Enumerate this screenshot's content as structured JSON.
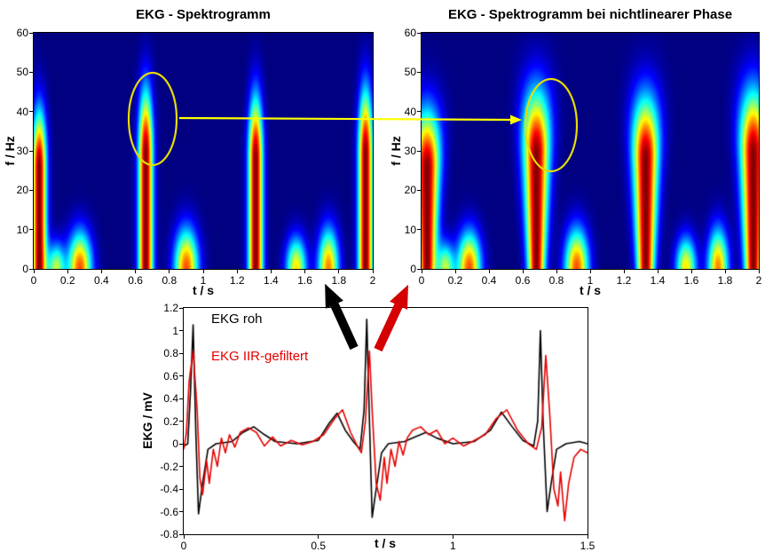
{
  "annotations": {
    "highlight_ellipse_color": "#e8dc00",
    "link_arrow_color": "#ffff00",
    "raw_signal_arrow_color": "#000000",
    "filtered_signal_arrow_color": "#d40000"
  },
  "chart_data": [
    {
      "id": "spectrogram_raw",
      "type": "heatmap",
      "title": "EKG - Spektrogramm",
      "xlabel": "t / s",
      "ylabel": "f / Hz",
      "xlim": [
        0,
        2
      ],
      "ylim": [
        0,
        60
      ],
      "xticks": [
        0,
        0.2,
        0.4,
        0.6,
        0.8,
        1,
        1.2,
        1.4,
        1.6,
        1.8,
        2
      ],
      "yticks": [
        0,
        10,
        20,
        30,
        40,
        50,
        60
      ],
      "colormap": "jet",
      "background_color": "#000080",
      "top_broadening": 0,
      "beats": [
        {
          "t": 0.03,
          "fmax": 46,
          "w": 0.042,
          "a": 1
        },
        {
          "t": 0.66,
          "fmax": 52,
          "w": 0.042,
          "a": 1
        },
        {
          "t": 1.31,
          "fmax": 50,
          "w": 0.042,
          "a": 1
        },
        {
          "t": 1.96,
          "fmax": 52,
          "w": 0.042,
          "a": 1
        }
      ],
      "low_freq_blobs": [
        {
          "t": 0.13,
          "fmax": 9,
          "w": 0.05,
          "a": 0.55
        },
        {
          "t": 0.27,
          "fmax": 13,
          "w": 0.07,
          "a": 0.8
        },
        {
          "t": 0.9,
          "fmax": 14,
          "w": 0.07,
          "a": 0.8
        },
        {
          "t": 1.55,
          "fmax": 11,
          "w": 0.06,
          "a": 0.65
        },
        {
          "t": 1.74,
          "fmax": 14,
          "w": 0.06,
          "a": 0.75
        }
      ],
      "highlight_ellipse": {
        "t": 0.7,
        "f": 38,
        "rt": 0.14,
        "rf": 12
      }
    },
    {
      "id": "spectrogram_nonlinear_phase",
      "type": "heatmap",
      "title": "EKG - Spektrogramm bei nichtlinearer Phase",
      "xlabel": "t / s",
      "ylabel": "f / Hz",
      "xlim": [
        0,
        2
      ],
      "ylim": [
        0,
        60
      ],
      "xticks": [
        0,
        0.2,
        0.4,
        0.6,
        0.8,
        1,
        1.2,
        1.4,
        1.6,
        1.8,
        2
      ],
      "yticks": [
        0,
        10,
        20,
        30,
        40,
        50,
        60
      ],
      "colormap": "jet",
      "background_color": "#000080",
      "top_broadening": 0.9,
      "beats": [
        {
          "t": 0.03,
          "fmax": 46,
          "w": 0.05,
          "a": 1
        },
        {
          "t": 0.68,
          "fmax": 52,
          "w": 0.05,
          "a": 1
        },
        {
          "t": 1.33,
          "fmax": 50,
          "w": 0.05,
          "a": 1
        },
        {
          "t": 1.97,
          "fmax": 52,
          "w": 0.05,
          "a": 1
        }
      ],
      "low_freq_blobs": [
        {
          "t": 0.14,
          "fmax": 9,
          "w": 0.05,
          "a": 0.55
        },
        {
          "t": 0.28,
          "fmax": 13,
          "w": 0.07,
          "a": 0.8
        },
        {
          "t": 0.92,
          "fmax": 14,
          "w": 0.07,
          "a": 0.8
        },
        {
          "t": 1.57,
          "fmax": 11,
          "w": 0.06,
          "a": 0.65
        },
        {
          "t": 1.76,
          "fmax": 14,
          "w": 0.06,
          "a": 0.75
        }
      ],
      "highlight_ellipse": {
        "t": 0.77,
        "f": 36.5,
        "rt": 0.15,
        "rf": 12
      }
    },
    {
      "id": "ecg_time_series",
      "type": "line",
      "title": "",
      "xlabel": "t / s",
      "ylabel": "EKG / mV",
      "xlim": [
        0,
        1.5
      ],
      "ylim": [
        -0.8,
        1.2
      ],
      "xticks": [
        0,
        0.5,
        1,
        1.5
      ],
      "yticks": [
        -0.8,
        -0.6,
        -0.4,
        -0.2,
        0,
        0.2,
        0.4,
        0.6,
        0.8,
        1,
        1.2
      ],
      "series": [
        {
          "name": "EKG roh",
          "color": "#000000",
          "points": [
            [
              0.0,
              -0.02
            ],
            [
              0.015,
              0.0
            ],
            [
              0.025,
              0.45
            ],
            [
              0.035,
              1.05
            ],
            [
              0.045,
              0.1
            ],
            [
              0.055,
              -0.62
            ],
            [
              0.07,
              -0.35
            ],
            [
              0.09,
              -0.05
            ],
            [
              0.12,
              0.0
            ],
            [
              0.18,
              0.02
            ],
            [
              0.22,
              0.1
            ],
            [
              0.26,
              0.15
            ],
            [
              0.3,
              0.08
            ],
            [
              0.34,
              0.02
            ],
            [
              0.42,
              0.0
            ],
            [
              0.5,
              0.03
            ],
            [
              0.54,
              0.18
            ],
            [
              0.57,
              0.27
            ],
            [
              0.6,
              0.12
            ],
            [
              0.63,
              0.02
            ],
            [
              0.655,
              -0.05
            ],
            [
              0.67,
              0.3
            ],
            [
              0.68,
              1.1
            ],
            [
              0.69,
              0.2
            ],
            [
              0.7,
              -0.65
            ],
            [
              0.715,
              -0.4
            ],
            [
              0.735,
              -0.08
            ],
            [
              0.76,
              0.0
            ],
            [
              0.82,
              0.02
            ],
            [
              0.86,
              0.06
            ],
            [
              0.9,
              0.1
            ],
            [
              0.94,
              0.05
            ],
            [
              1.0,
              0.0
            ],
            [
              1.08,
              0.02
            ],
            [
              1.14,
              0.12
            ],
            [
              1.18,
              0.28
            ],
            [
              1.22,
              0.15
            ],
            [
              1.26,
              0.03
            ],
            [
              1.3,
              -0.02
            ],
            [
              1.315,
              0.2
            ],
            [
              1.325,
              1.0
            ],
            [
              1.335,
              0.2
            ],
            [
              1.35,
              -0.6
            ],
            [
              1.365,
              -0.35
            ],
            [
              1.385,
              -0.05
            ],
            [
              1.42,
              0.0
            ],
            [
              1.47,
              0.02
            ],
            [
              1.5,
              0.0
            ]
          ]
        },
        {
          "name": "EKG IIR-gefiltert",
          "color": "#e60000",
          "points": [
            [
              0.0,
              -0.05
            ],
            [
              0.01,
              0.1
            ],
            [
              0.02,
              0.55
            ],
            [
              0.035,
              0.82
            ],
            [
              0.05,
              0.3
            ],
            [
              0.06,
              -0.3
            ],
            [
              0.07,
              -0.45
            ],
            [
              0.085,
              -0.15
            ],
            [
              0.095,
              -0.35
            ],
            [
              0.11,
              -0.05
            ],
            [
              0.125,
              -0.2
            ],
            [
              0.14,
              0.05
            ],
            [
              0.155,
              -0.08
            ],
            [
              0.17,
              0.08
            ],
            [
              0.19,
              -0.03
            ],
            [
              0.21,
              0.1
            ],
            [
              0.24,
              0.14
            ],
            [
              0.27,
              0.1
            ],
            [
              0.3,
              -0.02
            ],
            [
              0.33,
              0.06
            ],
            [
              0.36,
              -0.02
            ],
            [
              0.4,
              0.03
            ],
            [
              0.44,
              -0.01
            ],
            [
              0.48,
              0.02
            ],
            [
              0.52,
              0.08
            ],
            [
              0.56,
              0.22
            ],
            [
              0.59,
              0.3
            ],
            [
              0.62,
              0.1
            ],
            [
              0.645,
              -0.02
            ],
            [
              0.66,
              -0.08
            ],
            [
              0.675,
              0.2
            ],
            [
              0.69,
              0.82
            ],
            [
              0.7,
              0.3
            ],
            [
              0.715,
              -0.35
            ],
            [
              0.73,
              -0.5
            ],
            [
              0.745,
              -0.12
            ],
            [
              0.755,
              -0.35
            ],
            [
              0.77,
              -0.05
            ],
            [
              0.785,
              -0.2
            ],
            [
              0.8,
              0.02
            ],
            [
              0.815,
              -0.1
            ],
            [
              0.83,
              0.05
            ],
            [
              0.85,
              0.12
            ],
            [
              0.88,
              0.15
            ],
            [
              0.91,
              0.08
            ],
            [
              0.94,
              0.12
            ],
            [
              0.97,
              0.0
            ],
            [
              1.0,
              0.05
            ],
            [
              1.04,
              -0.02
            ],
            [
              1.08,
              0.03
            ],
            [
              1.12,
              0.08
            ],
            [
              1.16,
              0.22
            ],
            [
              1.2,
              0.3
            ],
            [
              1.24,
              0.12
            ],
            [
              1.28,
              0.0
            ],
            [
              1.31,
              -0.05
            ],
            [
              1.33,
              0.15
            ],
            [
              1.345,
              0.78
            ],
            [
              1.36,
              0.25
            ],
            [
              1.375,
              -0.4
            ],
            [
              1.39,
              -0.55
            ],
            [
              1.4,
              -0.25
            ],
            [
              1.415,
              -0.68
            ],
            [
              1.43,
              -0.35
            ],
            [
              1.45,
              -0.12
            ],
            [
              1.475,
              -0.05
            ],
            [
              1.5,
              -0.08
            ]
          ]
        }
      ]
    }
  ]
}
